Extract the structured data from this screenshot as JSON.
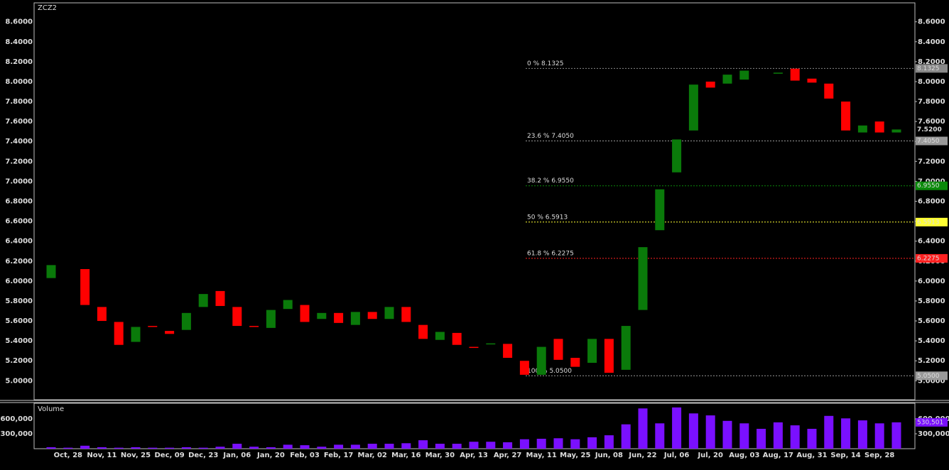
{
  "chart_data": {
    "type": "candlestick",
    "title": "ZCZ2",
    "categories": [
      null,
      "Oct, 28",
      null,
      "Nov, 11",
      null,
      "Nov, 25",
      null,
      "Dec, 09",
      null,
      "Dec, 23",
      null,
      "Jan, 06",
      null,
      "Jan, 20",
      null,
      "Feb, 03",
      null,
      "Feb, 17",
      null,
      "Mar, 02",
      null,
      "Mar, 16",
      null,
      "Mar, 30",
      null,
      "Apr, 13",
      null,
      "Apr, 27",
      null,
      "May, 11",
      null,
      "May, 25",
      null,
      "Jun, 08",
      null,
      "Jun, 22",
      null,
      "Jul, 06",
      null,
      "Jul, 20",
      null,
      "Aug, 03",
      null,
      "Aug, 17",
      null,
      "Aug, 31",
      null,
      "Sep, 14",
      null,
      "Sep, 28",
      null
    ],
    "open": [
      6.03,
      null,
      6.12,
      5.74,
      5.59,
      5.39,
      5.55,
      5.5,
      5.51,
      5.74,
      5.9,
      5.74,
      5.55,
      5.53,
      5.72,
      5.76,
      5.62,
      5.68,
      5.56,
      5.69,
      5.62,
      5.74,
      5.56,
      5.41,
      5.48,
      5.34,
      5.37,
      5.37,
      5.2,
      5.06,
      5.42,
      5.23,
      5.18,
      5.42,
      5.11,
      5.71,
      6.51,
      7.09,
      7.51,
      8.0,
      7.98,
      8.02,
      null,
      8.08,
      8.13,
      8.03,
      7.98,
      7.8,
      7.49,
      7.6,
      7.49
    ],
    "close": [
      6.16,
      null,
      5.76,
      5.6,
      5.36,
      5.54,
      5.54,
      5.47,
      5.68,
      5.87,
      5.75,
      5.55,
      5.54,
      5.71,
      5.81,
      5.59,
      5.68,
      5.58,
      5.69,
      5.62,
      5.74,
      5.59,
      5.42,
      5.49,
      5.36,
      5.33,
      5.375,
      5.23,
      5.06,
      5.34,
      5.21,
      5.14,
      5.42,
      5.08,
      5.55,
      6.34,
      6.92,
      7.42,
      7.97,
      7.94,
      8.07,
      8.11,
      null,
      8.09,
      8.01,
      7.99,
      7.83,
      7.51,
      7.56,
      7.49,
      7.52
    ],
    "up_color": "#0a7a0a",
    "down_color": "#ff0000",
    "ylim": [
      4.81,
      8.79
    ],
    "yticks": [
      {
        "value": 5.0,
        "label": "5.0000"
      },
      {
        "value": 5.2,
        "label": "5.2000"
      },
      {
        "value": 5.4,
        "label": "5.4000"
      },
      {
        "value": 5.6,
        "label": "5.6000"
      },
      {
        "value": 5.8,
        "label": "5.8000"
      },
      {
        "value": 6.0,
        "label": "6.0000"
      },
      {
        "value": 6.2,
        "label": "6.2000"
      },
      {
        "value": 6.4,
        "label": "6.4000"
      },
      {
        "value": 6.6,
        "label": "6.6000"
      },
      {
        "value": 6.8,
        "label": "6.8000"
      },
      {
        "value": 7.0,
        "label": "7.0000"
      },
      {
        "value": 7.2,
        "label": "7.2000"
      },
      {
        "value": 7.4,
        "label": "7.4000"
      },
      {
        "value": 7.6,
        "label": "7.6000"
      },
      {
        "value": 7.8,
        "label": "7.8000"
      },
      {
        "value": 8.0,
        "label": "8.0000"
      },
      {
        "value": 8.2,
        "label": "8.2000"
      },
      {
        "value": 8.4,
        "label": "8.4000"
      },
      {
        "value": 8.6,
        "label": "8.6000"
      }
    ],
    "fib": [
      {
        "value": 8.1325,
        "label": "0 % 8.1325",
        "tag": "8.1325",
        "color": "#888888"
      },
      {
        "value": 7.405,
        "label": "23.6 % 7.4050",
        "tag": "7.4050",
        "color": "#999999"
      },
      {
        "value": 6.955,
        "label": "38.2 % 6.9550",
        "tag": "6.9550",
        "color": "#0a8a0a"
      },
      {
        "value": 6.5913,
        "label": "50 % 6.5913",
        "tag": "6.5913",
        "color": "#ffff33"
      },
      {
        "value": 6.2275,
        "label": "61.8 % 6.2275",
        "tag": "6.2275",
        "color": "#ff2020"
      },
      {
        "value": 5.05,
        "label": "100 % 5.0500",
        "tag": "5.0500",
        "color": "#999999"
      }
    ],
    "last": {
      "value": 7.52,
      "label": "7.5200",
      "color": "#ff2020"
    },
    "volume": {
      "title": "Volume",
      "color": "#7a10ff",
      "values": [
        30000,
        20000,
        60000,
        30000,
        20000,
        30000,
        20000,
        20000,
        30000,
        20000,
        40000,
        100000,
        40000,
        30000,
        80000,
        70000,
        40000,
        80000,
        80000,
        100000,
        100000,
        110000,
        170000,
        100000,
        100000,
        140000,
        140000,
        130000,
        190000,
        200000,
        210000,
        190000,
        230000,
        270000,
        490000,
        810000,
        510000,
        830000,
        710000,
        670000,
        560000,
        510000,
        400000,
        530000,
        470000,
        400000,
        660000,
        610000,
        570000,
        510000,
        530501
      ],
      "ylim": [
        0,
        914000
      ],
      "yticks": [
        {
          "value": 300000,
          "label": "300,000"
        },
        {
          "value": 600000,
          "label": "600,000"
        }
      ],
      "last_label": "530,501"
    }
  }
}
